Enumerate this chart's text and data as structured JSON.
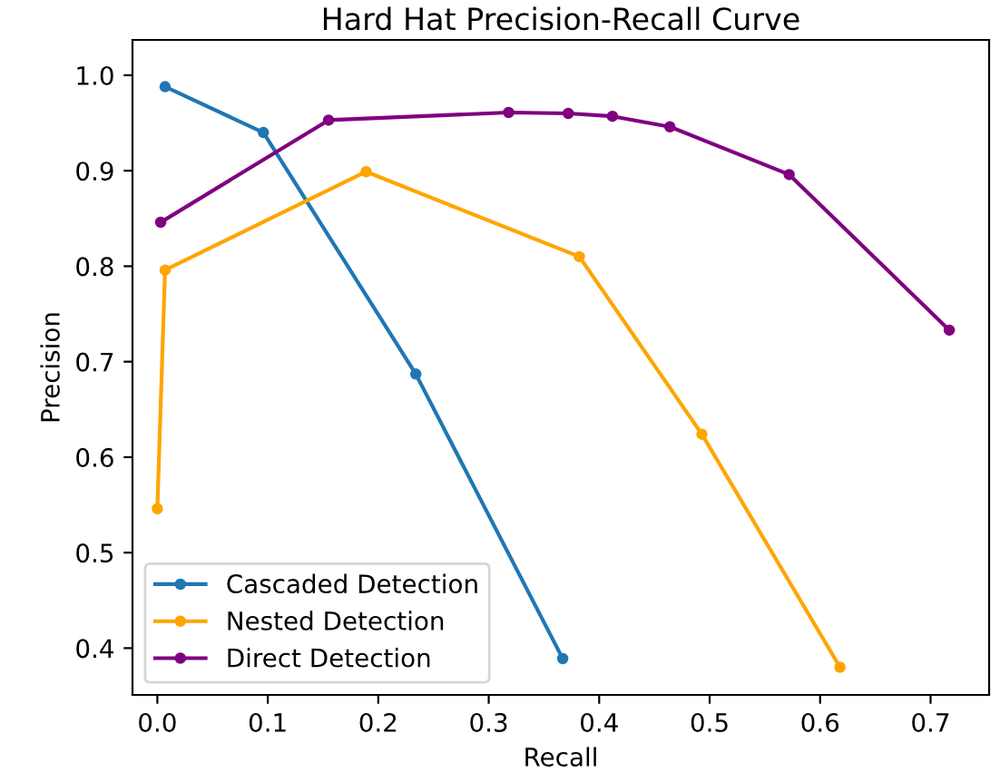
{
  "chart_data": {
    "type": "line",
    "title": "Hard Hat Precision-Recall Curve",
    "xlabel": "Recall",
    "ylabel": "Precision",
    "series": [
      {
        "name": "Cascaded Detection",
        "color": "#1f77b4",
        "x": [
          0.007,
          0.096,
          0.234,
          0.367
        ],
        "values": [
          0.988,
          0.94,
          0.687,
          0.389
        ]
      },
      {
        "name": "Nested Detection",
        "color": "#ffa500",
        "x": [
          0.0,
          0.007,
          0.189,
          0.382,
          0.493,
          0.618
        ],
        "values": [
          0.546,
          0.796,
          0.899,
          0.81,
          0.624,
          0.38
        ]
      },
      {
        "name": "Direct Detection",
        "color": "#800080",
        "x": [
          0.003,
          0.155,
          0.318,
          0.372,
          0.412,
          0.464,
          0.572,
          0.717
        ],
        "values": [
          0.846,
          0.953,
          0.961,
          0.96,
          0.957,
          0.946,
          0.896,
          0.733
        ]
      }
    ],
    "xlim": [
      -0.0225,
      0.753
    ],
    "ylim": [
      0.351,
      1.037
    ],
    "xticks": [
      {
        "value": 0,
        "label": "0.0"
      },
      0.1,
      0.2,
      0.3,
      0.4,
      0.5,
      0.6,
      0.7
    ],
    "yticks": [
      0.4,
      0.5,
      0.6,
      0.7,
      0.8,
      0.9,
      {
        "value": 1,
        "label": "1.0"
      }
    ],
    "marker": "circle",
    "line_style": "solid",
    "legend": "bottom left"
  }
}
